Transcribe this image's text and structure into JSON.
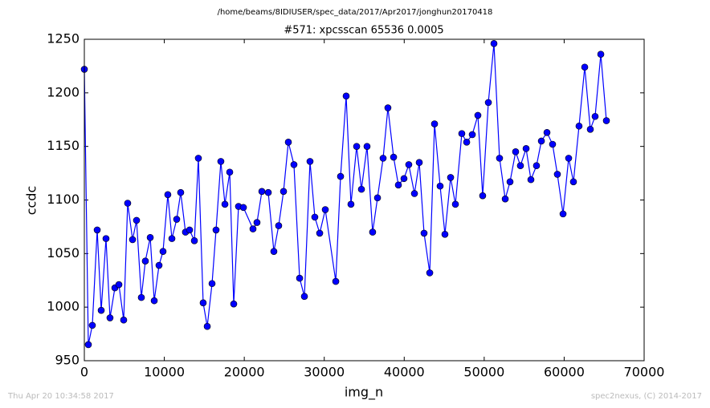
{
  "chart_data": {
    "type": "line",
    "suptitle": "/home/beams/8IDIUSER/spec_data/2017/Apr2017/jonghun20170418",
    "title": "#571: xpcsscan 65536 0.0005",
    "x_label": "img_n",
    "y_label": "ccdc",
    "footer_left": "Thu Apr 20 10:34:58 2017",
    "footer_right": "spec2nexus, (C) 2014-2017",
    "xlim": [
      0,
      70000
    ],
    "ylim": [
      950,
      1250
    ],
    "xticks": [
      0,
      10000,
      20000,
      30000,
      40000,
      50000,
      60000,
      70000
    ],
    "yticks": [
      950,
      1000,
      1050,
      1100,
      1150,
      1200,
      1250
    ],
    "grid": false,
    "x": [
      0,
      500,
      1000,
      1610,
      2110,
      2710,
      3210,
      3820,
      4320,
      4920,
      5420,
      6030,
      6530,
      7130,
      7630,
      8240,
      8740,
      9340,
      9840,
      10440,
      10950,
      11550,
      12050,
      12650,
      13160,
      13760,
      14260,
      14860,
      15370,
      15970,
      16470,
      17070,
      17580,
      18180,
      18680,
      19280,
      19890,
      21090,
      21590,
      22200,
      23000,
      23700,
      24300,
      24910,
      25510,
      26210,
      26920,
      27520,
      28220,
      28820,
      29430,
      30130,
      31440,
      32040,
      32740,
      33340,
      34050,
      34650,
      35350,
      36050,
      36660,
      37360,
      37960,
      38670,
      39270,
      39970,
      40570,
      41280,
      41880,
      42480,
      43190,
      43790,
      44490,
      45090,
      45800,
      46400,
      47200,
      47810,
      48510,
      49210,
      49810,
      50520,
      51220,
      51920,
      52630,
      53230,
      53930,
      54530,
      55240,
      55840,
      56540,
      57150,
      57850,
      58550,
      59150,
      59860,
      60560,
      61160,
      61860,
      62570,
      63270,
      63870,
      64580,
      65280
    ],
    "series": [
      {
        "name": "ccdc",
        "color": "#0000ff",
        "values": [
          1222,
          965,
          983,
          1072,
          997,
          1064,
          990,
          1018,
          1021,
          988,
          1097,
          1063,
          1081,
          1009,
          1043,
          1065,
          1006,
          1039,
          1052,
          1105,
          1064,
          1082,
          1107,
          1070,
          1072,
          1062,
          1139,
          1004,
          982,
          1022,
          1072,
          1136,
          1096,
          1126,
          1003,
          1094,
          1093,
          1073,
          1079,
          1108,
          1107,
          1052,
          1076,
          1108,
          1154,
          1133,
          1027,
          1010,
          1136,
          1084,
          1069,
          1091,
          1024,
          1122,
          1197,
          1096,
          1150,
          1110,
          1150,
          1070,
          1102,
          1139,
          1186,
          1140,
          1114,
          1120,
          1133,
          1106,
          1135,
          1069,
          1032,
          1171,
          1113,
          1068,
          1121,
          1096,
          1162,
          1154,
          1161,
          1179,
          1104,
          1191,
          1246,
          1139,
          1101,
          1117,
          1145,
          1132,
          1148,
          1119,
          1132,
          1155,
          1163,
          1152,
          1124,
          1087,
          1139,
          1117,
          1169,
          1224,
          1166,
          1178,
          1236,
          1174
        ]
      }
    ]
  }
}
